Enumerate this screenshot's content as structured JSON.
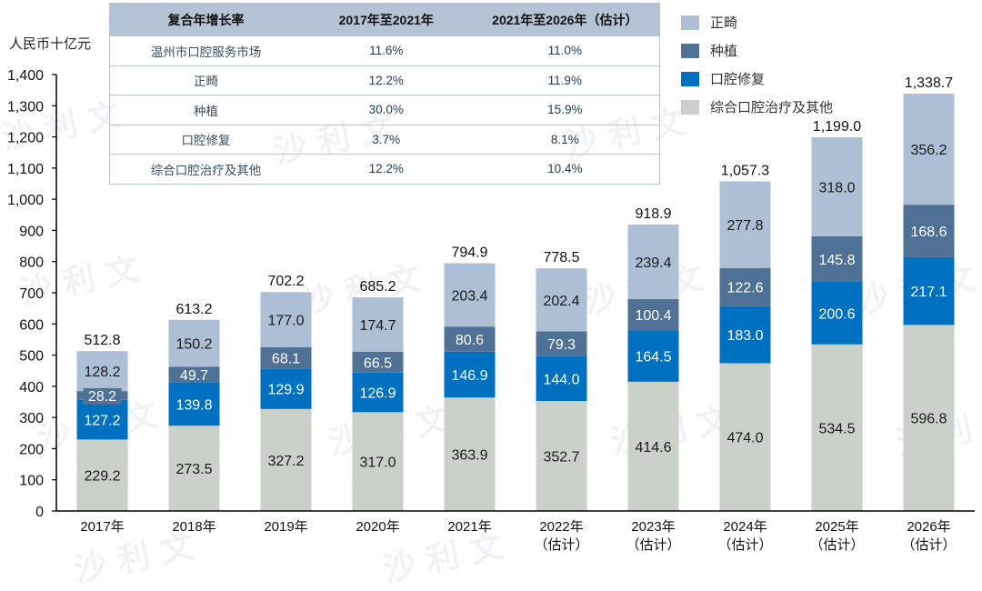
{
  "unit_label": "人民币十亿元",
  "cagr_table": {
    "headers": [
      "复合年增长率",
      "2017年至2021年",
      "2021年至2026年（估计）"
    ],
    "rows": [
      [
        "温州市口腔服务市场",
        "11.6%",
        "11.0%"
      ],
      [
        "正畸",
        "12.2%",
        "11.9%"
      ],
      [
        "种植",
        "30.0%",
        "15.9%"
      ],
      [
        "口腔修复",
        "3.7%",
        "8.1%"
      ],
      [
        "综合口腔治疗及其他",
        "12.2%",
        "10.4%"
      ]
    ]
  },
  "watermark_text": "沙 利 文",
  "chart_data": {
    "type": "bar",
    "stacked": true,
    "title": "",
    "xlabel": "",
    "ylabel": "人民币十亿元",
    "ylim": [
      0,
      1400
    ],
    "yticks": [
      0,
      100,
      200,
      300,
      400,
      500,
      600,
      700,
      800,
      900,
      1000,
      1100,
      1200,
      1300,
      1400
    ],
    "ytick_labels": [
      "0",
      "100",
      "200",
      "300",
      "400",
      "500",
      "600",
      "700",
      "800",
      "900",
      "1,000",
      "1,100",
      "1,200",
      "1,300",
      "1,400"
    ],
    "grid": false,
    "legend_position": "top-right",
    "categories": [
      "2017年",
      "2018年",
      "2019年",
      "2020年",
      "2021年",
      "2022年",
      "2023年",
      "2024年",
      "2025年",
      "2026年"
    ],
    "category_sublabels": [
      "",
      "",
      "",
      "",
      "",
      "（估计）",
      "（估计）",
      "（估计）",
      "（估计）",
      "（估计）"
    ],
    "series": [
      {
        "name": "综合口腔治疗及其他",
        "color": "#c9d1c9",
        "label_color": "#1a1a1a",
        "values": [
          229.2,
          273.5,
          327.2,
          317.0,
          363.9,
          352.7,
          414.6,
          474.0,
          534.5,
          596.8
        ]
      },
      {
        "name": "口腔修复",
        "color": "#0070c0",
        "label_color": "#ffffff",
        "values": [
          127.2,
          139.8,
          129.9,
          126.9,
          146.9,
          144.0,
          164.5,
          183.0,
          200.6,
          217.1
        ]
      },
      {
        "name": "种植",
        "color": "#4f7196",
        "label_color": "#ffffff",
        "values": [
          28.2,
          49.7,
          68.1,
          66.5,
          80.6,
          79.3,
          100.4,
          122.6,
          145.8,
          168.6
        ]
      },
      {
        "name": "正畸",
        "color": "#adbfd4",
        "label_color": "#1a1a1a",
        "values": [
          128.2,
          150.2,
          177.0,
          174.7,
          203.4,
          202.4,
          239.4,
          277.8,
          318.0,
          356.2
        ]
      }
    ],
    "legend_order": [
      "正畸",
      "种植",
      "口腔修复",
      "综合口腔治疗及其他"
    ],
    "totals": [
      "512.8",
      "613.2",
      "702.2",
      "685.2",
      "794.9",
      "778.5",
      "918.9",
      "1,057.3",
      "1,199.0",
      "1,338.7"
    ],
    "segment_labels": [
      [
        "229.2",
        "273.5",
        "327.2",
        "317.0",
        "363.9",
        "352.7",
        "414.6",
        "474.0",
        "534.5",
        "596.8"
      ],
      [
        "127.2",
        "139.8",
        "129.9",
        "126.9",
        "146.9",
        "144.0",
        "164.5",
        "183.0",
        "200.6",
        "217.1"
      ],
      [
        "28.2",
        "49.7",
        "68.1",
        "66.5",
        "80.6",
        "79.3",
        "100.4",
        "122.6",
        "145.8",
        "168.6"
      ],
      [
        "128.2",
        "150.2",
        "177.0",
        "174.7",
        "203.4",
        "202.4",
        "239.4",
        "277.8",
        "318.0",
        "356.2"
      ]
    ]
  }
}
